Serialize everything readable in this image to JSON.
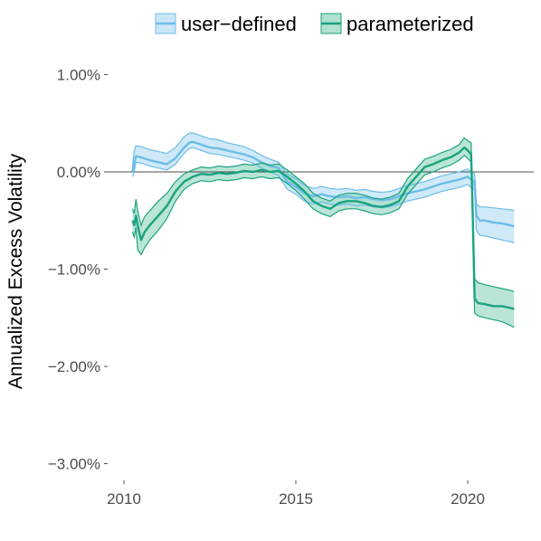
{
  "chart_data": {
    "type": "line",
    "title": "",
    "xlabel": "",
    "ylabel": "Annualized Excess Volatility",
    "xlim": [
      2010.0,
      2021.6
    ],
    "ylim": [
      -3.0,
      1.0
    ],
    "x_ticks": [
      2010,
      2015,
      2020
    ],
    "x_tick_labels": [
      "2010",
      "2015",
      "2020"
    ],
    "y_ticks": [
      1.0,
      0.0,
      -1.0,
      -2.0,
      -3.0
    ],
    "y_tick_labels": [
      "1.00%",
      "0.00%",
      "−1.00%",
      "−2.00%",
      "−3.00%"
    ],
    "reference_line": 0.0,
    "grid": false,
    "legend_position": "top",
    "series": [
      {
        "name": "user−defined",
        "color": "#6cbde8",
        "fill": "#bfe2f6",
        "x": [
          2010.25,
          2010.3,
          2010.35,
          2010.5,
          2010.75,
          2011.0,
          2011.25,
          2011.5,
          2011.75,
          2011.9,
          2012.0,
          2012.25,
          2012.5,
          2012.75,
          2013.0,
          2013.25,
          2013.5,
          2013.75,
          2014.0,
          2014.25,
          2014.5,
          2014.75,
          2015.0,
          2015.25,
          2015.5,
          2015.75,
          2016.0,
          2016.25,
          2016.5,
          2016.75,
          2017.0,
          2017.25,
          2017.5,
          2017.75,
          2018.0,
          2018.25,
          2018.5,
          2018.75,
          2019.0,
          2019.25,
          2019.5,
          2019.75,
          2020.0,
          2020.1,
          2020.2,
          2020.25,
          2020.35,
          2020.5,
          2020.75,
          2021.0,
          2021.25,
          2021.35
        ],
        "y": [
          0.0,
          0.1,
          0.16,
          0.15,
          0.12,
          0.1,
          0.08,
          0.14,
          0.25,
          0.3,
          0.31,
          0.28,
          0.25,
          0.24,
          0.22,
          0.2,
          0.18,
          0.15,
          0.1,
          0.06,
          0.04,
          -0.1,
          -0.15,
          -0.22,
          -0.25,
          -0.23,
          -0.25,
          -0.26,
          -0.25,
          -0.27,
          -0.26,
          -0.28,
          -0.29,
          -0.28,
          -0.25,
          -0.22,
          -0.2,
          -0.18,
          -0.15,
          -0.12,
          -0.1,
          -0.08,
          -0.05,
          -0.08,
          -0.1,
          -0.45,
          -0.5,
          -0.5,
          -0.52,
          -0.53,
          -0.55,
          -0.56
        ],
        "lower": [
          -0.05,
          0.0,
          0.1,
          0.09,
          0.06,
          0.04,
          0.02,
          0.08,
          0.19,
          0.24,
          0.25,
          0.22,
          0.19,
          0.18,
          0.16,
          0.14,
          0.12,
          0.09,
          0.04,
          0.0,
          -0.04,
          -0.18,
          -0.23,
          -0.3,
          -0.33,
          -0.31,
          -0.33,
          -0.34,
          -0.33,
          -0.35,
          -0.34,
          -0.36,
          -0.37,
          -0.36,
          -0.33,
          -0.3,
          -0.28,
          -0.26,
          -0.23,
          -0.2,
          -0.18,
          -0.16,
          -0.13,
          -0.16,
          -0.18,
          -0.6,
          -0.65,
          -0.66,
          -0.68,
          -0.7,
          -0.72,
          -0.73
        ],
        "upper": [
          0.05,
          0.22,
          0.27,
          0.26,
          0.23,
          0.21,
          0.19,
          0.25,
          0.36,
          0.4,
          0.4,
          0.37,
          0.34,
          0.33,
          0.3,
          0.28,
          0.26,
          0.22,
          0.17,
          0.13,
          0.1,
          -0.02,
          -0.07,
          -0.14,
          -0.17,
          -0.15,
          -0.17,
          -0.18,
          -0.17,
          -0.19,
          -0.18,
          -0.2,
          -0.21,
          -0.2,
          -0.17,
          -0.14,
          -0.12,
          -0.1,
          -0.07,
          -0.04,
          -0.02,
          0.0,
          0.03,
          0.0,
          -0.02,
          -0.33,
          -0.36,
          -0.36,
          -0.37,
          -0.38,
          -0.39,
          -0.4
        ]
      },
      {
        "name": "parameterized",
        "color": "#1aa37f",
        "fill": "#a3dcc8",
        "x": [
          2010.25,
          2010.3,
          2010.35,
          2010.4,
          2010.5,
          2010.6,
          2010.75,
          2011.0,
          2011.25,
          2011.5,
          2011.75,
          2012.0,
          2012.25,
          2012.5,
          2012.75,
          2013.0,
          2013.25,
          2013.5,
          2013.75,
          2014.0,
          2014.25,
          2014.5,
          2014.75,
          2015.0,
          2015.25,
          2015.5,
          2015.75,
          2016.0,
          2016.25,
          2016.5,
          2016.75,
          2017.0,
          2017.25,
          2017.5,
          2017.75,
          2018.0,
          2018.25,
          2018.5,
          2018.75,
          2019.0,
          2019.25,
          2019.5,
          2019.75,
          2019.9,
          2020.0,
          2020.1,
          2020.15,
          2020.2,
          2020.3,
          2020.5,
          2020.75,
          2021.0,
          2021.25,
          2021.35
        ],
        "y": [
          -0.5,
          -0.55,
          -0.45,
          -0.55,
          -0.7,
          -0.62,
          -0.55,
          -0.45,
          -0.35,
          -0.2,
          -0.1,
          -0.05,
          -0.02,
          -0.03,
          -0.01,
          -0.02,
          -0.01,
          0.01,
          0.0,
          0.02,
          0.0,
          0.01,
          -0.05,
          -0.12,
          -0.2,
          -0.3,
          -0.35,
          -0.38,
          -0.32,
          -0.3,
          -0.3,
          -0.32,
          -0.35,
          -0.36,
          -0.34,
          -0.3,
          -0.15,
          -0.05,
          0.05,
          0.08,
          0.12,
          0.15,
          0.2,
          0.25,
          0.22,
          0.18,
          -0.5,
          -1.3,
          -1.35,
          -1.36,
          -1.38,
          -1.38,
          -1.4,
          -1.41
        ],
        "lower": [
          -0.62,
          -0.67,
          -0.57,
          -0.8,
          -0.85,
          -0.78,
          -0.7,
          -0.6,
          -0.48,
          -0.3,
          -0.18,
          -0.12,
          -0.09,
          -0.1,
          -0.08,
          -0.09,
          -0.08,
          -0.06,
          -0.07,
          -0.05,
          -0.07,
          -0.06,
          -0.12,
          -0.19,
          -0.28,
          -0.38,
          -0.43,
          -0.46,
          -0.4,
          -0.38,
          -0.38,
          -0.4,
          -0.43,
          -0.44,
          -0.42,
          -0.38,
          -0.23,
          -0.13,
          -0.03,
          0.0,
          0.04,
          0.07,
          0.12,
          0.17,
          0.14,
          0.1,
          -0.6,
          -1.45,
          -1.48,
          -1.5,
          -1.52,
          -1.54,
          -1.58,
          -1.6
        ],
        "upper": [
          -0.38,
          -0.43,
          -0.28,
          -0.4,
          -0.55,
          -0.46,
          -0.4,
          -0.3,
          -0.22,
          -0.1,
          -0.02,
          0.02,
          0.05,
          0.04,
          0.06,
          0.05,
          0.06,
          0.08,
          0.07,
          0.09,
          0.07,
          0.08,
          0.02,
          -0.05,
          -0.12,
          -0.22,
          -0.27,
          -0.3,
          -0.24,
          -0.22,
          -0.22,
          -0.24,
          -0.27,
          -0.28,
          -0.26,
          -0.22,
          -0.07,
          0.03,
          0.13,
          0.16,
          0.2,
          0.23,
          0.28,
          0.35,
          0.32,
          0.3,
          -0.4,
          -1.1,
          -1.14,
          -1.16,
          -1.18,
          -1.2,
          -1.22,
          -1.23
        ]
      }
    ]
  }
}
